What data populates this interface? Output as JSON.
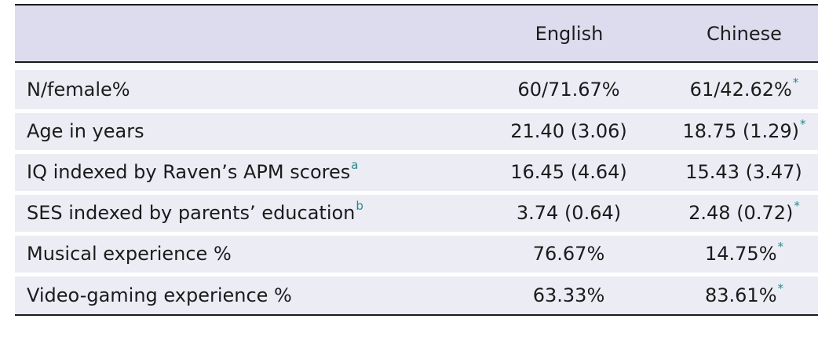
{
  "table": {
    "headers": [
      "",
      "English",
      "Chinese"
    ],
    "rows": [
      {
        "label": "N/female%",
        "label_note": "",
        "english": "60/71.67%",
        "english_note": "",
        "chinese": "61/42.62%",
        "chinese_note": "*"
      },
      {
        "label": "Age in years",
        "label_note": "",
        "english": "21.40 (3.06)",
        "english_note": "",
        "chinese": "18.75 (1.29)",
        "chinese_note": "*"
      },
      {
        "label": "IQ indexed by Raven’s APM scores",
        "label_note": "a",
        "english": "16.45 (4.64)",
        "english_note": "",
        "chinese": "15.43 (3.47)",
        "chinese_note": ""
      },
      {
        "label": "SES indexed by parents’ education",
        "label_note": "b",
        "english": "3.74 (0.64)",
        "english_note": "",
        "chinese": "2.48 (0.72)",
        "chinese_note": "*"
      },
      {
        "label": "Musical experience %",
        "label_note": "",
        "english": "76.67%",
        "english_note": "",
        "chinese": "14.75%",
        "chinese_note": "*"
      },
      {
        "label": "Video-gaming experience %",
        "label_note": "",
        "english": "63.33%",
        "english_note": "",
        "chinese": "83.61%",
        "chinese_note": "*"
      }
    ]
  },
  "colors": {
    "header_bg": "#dcdcee",
    "row_bg": "#ececf5",
    "note_color": "#2a8a8a",
    "rule_color": "#1a1a1a"
  }
}
